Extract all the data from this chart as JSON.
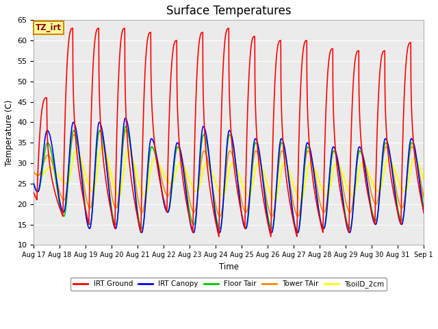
{
  "title": "Surface Temperatures",
  "ylabel": "Temperature (C)",
  "xlabel": "Time",
  "ylim": [
    10,
    65
  ],
  "yticks": [
    10,
    15,
    20,
    25,
    30,
    35,
    40,
    45,
    50,
    55,
    60,
    65
  ],
  "x_labels": [
    "Aug 17",
    "Aug 18",
    "Aug 19",
    "Aug 20",
    "Aug 21",
    "Aug 22",
    "Aug 23",
    "Aug 24",
    "Aug 25",
    "Aug 26",
    "Aug 27",
    "Aug 28",
    "Aug 29",
    "Aug 30",
    "Aug 31",
    "Sep 1"
  ],
  "series": {
    "IRT Ground": {
      "color": "#FF0000",
      "lw": 1.2
    },
    "IRT Canopy": {
      "color": "#0000FF",
      "lw": 1.2
    },
    "Floor Tair": {
      "color": "#00CC00",
      "lw": 1.2
    },
    "Tower TAir": {
      "color": "#FF8800",
      "lw": 1.2
    },
    "TsoilD_2cm": {
      "color": "#FFFF00",
      "lw": 1.5
    }
  },
  "legend_label": "TZ_irt",
  "plot_bg_color": "#EBEBEB",
  "title_fontsize": 12,
  "irt_ground_peaks": [
    46,
    63,
    63,
    63,
    62,
    60,
    62,
    63,
    61,
    60,
    60,
    58,
    57.5,
    57.5,
    59.5
  ],
  "irt_ground_mins": [
    21,
    17,
    15,
    14,
    13,
    18,
    13,
    12,
    14,
    12,
    12,
    13,
    13,
    15,
    15
  ],
  "irt_canopy_peaks": [
    38,
    40,
    40,
    41,
    36,
    35,
    39,
    38,
    36,
    36,
    35,
    34,
    34,
    36,
    36
  ],
  "irt_canopy_mins": [
    23,
    18,
    14,
    14,
    13,
    18,
    13,
    13,
    14,
    13,
    13,
    14,
    13,
    15,
    15
  ],
  "floor_peaks": [
    35,
    38,
    38,
    39,
    34,
    34,
    37,
    37,
    35,
    35,
    34,
    33,
    33,
    35,
    35
  ],
  "floor_mins": [
    23,
    17,
    15,
    15,
    14,
    18,
    15,
    14,
    14,
    14,
    13,
    14,
    14,
    16,
    16
  ],
  "tower_peaks": [
    32,
    37,
    38,
    38,
    34,
    34,
    33,
    33,
    33,
    33,
    33,
    33,
    33,
    34,
    34
  ],
  "tower_mins": [
    27,
    21,
    19,
    19,
    18,
    22,
    18,
    17,
    18,
    17,
    17,
    18,
    18,
    20,
    19
  ],
  "tsoil_peaks": [
    29,
    33,
    34,
    33,
    31,
    30,
    30,
    30,
    30,
    30,
    30,
    30,
    30,
    31,
    31
  ],
  "tsoil_mins": [
    27,
    25,
    23,
    22,
    22,
    25,
    23,
    22,
    22,
    21,
    21,
    22,
    22,
    23,
    23
  ]
}
